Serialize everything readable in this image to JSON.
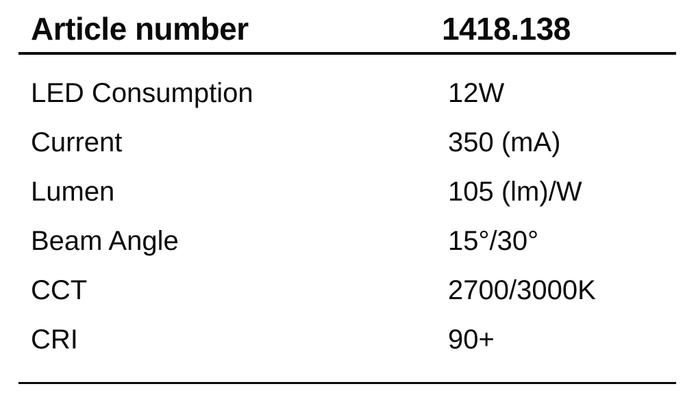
{
  "table": {
    "header": {
      "label": "Article number",
      "value": "1418.138"
    },
    "rows": [
      {
        "label": "LED Consumption",
        "value": "12W"
      },
      {
        "label": "Current",
        "value": "350 (mA)"
      },
      {
        "label": "Lumen",
        "value": "105 (lm)/W"
      },
      {
        "label": "Beam Angle",
        "value": "15°/30°"
      },
      {
        "label": "CCT",
        "value": "2700/3000K"
      },
      {
        "label": "CRI",
        "value": "90+"
      }
    ]
  },
  "colors": {
    "background": "#ffffff",
    "text": "#0a0a0a",
    "rule": "#0a0a0a"
  }
}
